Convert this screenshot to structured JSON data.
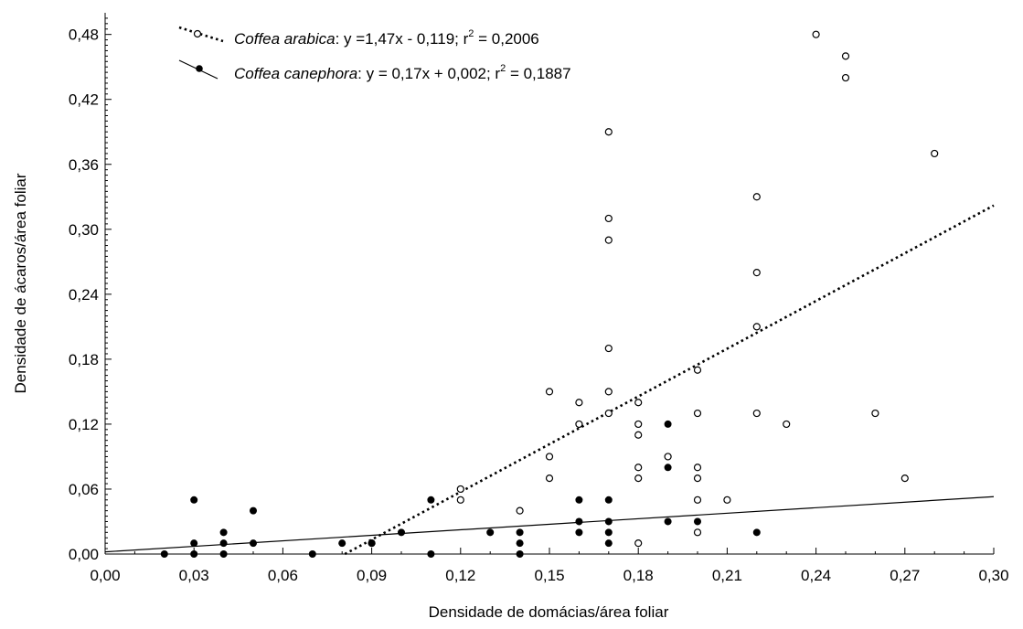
{
  "chart_data": {
    "type": "scatter",
    "xlabel": "Densidade de domácias/área foliar",
    "ylabel": "Densidade de ácaros/área foliar",
    "xlim": [
      0.0,
      0.3
    ],
    "ylim": [
      0.0,
      0.5
    ],
    "x_ticks": [
      "0,00",
      "0,03",
      "0,06",
      "0,09",
      "0,12",
      "0,15",
      "0,18",
      "0,21",
      "0,24",
      "0,27",
      "0,30"
    ],
    "y_ticks": [
      "0,00",
      "0,06",
      "0,12",
      "0,18",
      "0,24",
      "0,30",
      "0,36",
      "0,42",
      "0,48"
    ],
    "legend_position": "top-left",
    "series": [
      {
        "name": "Coffea arabica",
        "equation": ": y =1,47x - 0,119; r",
        "r2_value": " = 0,2006",
        "marker": "open-circle",
        "line_style": "dotted",
        "color": "#000000",
        "fit": {
          "slope": 1.47,
          "intercept": -0.119
        },
        "points": [
          [
            0.09,
            0.01
          ],
          [
            0.12,
            0.06
          ],
          [
            0.12,
            0.05
          ],
          [
            0.14,
            0.04
          ],
          [
            0.15,
            0.15
          ],
          [
            0.15,
            0.09
          ],
          [
            0.15,
            0.07
          ],
          [
            0.16,
            0.14
          ],
          [
            0.16,
            0.12
          ],
          [
            0.17,
            0.39
          ],
          [
            0.17,
            0.31
          ],
          [
            0.17,
            0.29
          ],
          [
            0.17,
            0.19
          ],
          [
            0.17,
            0.15
          ],
          [
            0.17,
            0.13
          ],
          [
            0.18,
            0.14
          ],
          [
            0.18,
            0.12
          ],
          [
            0.18,
            0.11
          ],
          [
            0.18,
            0.08
          ],
          [
            0.18,
            0.07
          ],
          [
            0.18,
            0.01
          ],
          [
            0.19,
            0.09
          ],
          [
            0.2,
            0.17
          ],
          [
            0.2,
            0.13
          ],
          [
            0.2,
            0.08
          ],
          [
            0.2,
            0.07
          ],
          [
            0.2,
            0.05
          ],
          [
            0.2,
            0.02
          ],
          [
            0.21,
            0.05
          ],
          [
            0.22,
            0.33
          ],
          [
            0.22,
            0.26
          ],
          [
            0.22,
            0.21
          ],
          [
            0.22,
            0.13
          ],
          [
            0.23,
            0.12
          ],
          [
            0.24,
            0.48
          ],
          [
            0.25,
            0.46
          ],
          [
            0.25,
            0.44
          ],
          [
            0.26,
            0.13
          ],
          [
            0.27,
            0.07
          ],
          [
            0.28,
            0.37
          ]
        ]
      },
      {
        "name": "Coffea canephora",
        "equation": ": y = 0,17x + 0,002; r",
        "r2_value": " = 0,1887",
        "marker": "filled-circle",
        "line_style": "solid",
        "color": "#000000",
        "fit": {
          "slope": 0.17,
          "intercept": 0.002
        },
        "points": [
          [
            0.02,
            0.0
          ],
          [
            0.03,
            0.05
          ],
          [
            0.03,
            0.01
          ],
          [
            0.03,
            0.0
          ],
          [
            0.04,
            0.02
          ],
          [
            0.04,
            0.01
          ],
          [
            0.04,
            0.0
          ],
          [
            0.05,
            0.04
          ],
          [
            0.05,
            0.01
          ],
          [
            0.07,
            0.0
          ],
          [
            0.08,
            0.01
          ],
          [
            0.09,
            0.01
          ],
          [
            0.1,
            0.02
          ],
          [
            0.11,
            0.05
          ],
          [
            0.11,
            0.0
          ],
          [
            0.13,
            0.02
          ],
          [
            0.14,
            0.02
          ],
          [
            0.14,
            0.01
          ],
          [
            0.14,
            0.0
          ],
          [
            0.16,
            0.05
          ],
          [
            0.16,
            0.03
          ],
          [
            0.16,
            0.02
          ],
          [
            0.17,
            0.05
          ],
          [
            0.17,
            0.03
          ],
          [
            0.17,
            0.02
          ],
          [
            0.17,
            0.01
          ],
          [
            0.19,
            0.12
          ],
          [
            0.19,
            0.08
          ],
          [
            0.19,
            0.03
          ],
          [
            0.2,
            0.03
          ],
          [
            0.22,
            0.02
          ]
        ]
      }
    ]
  }
}
